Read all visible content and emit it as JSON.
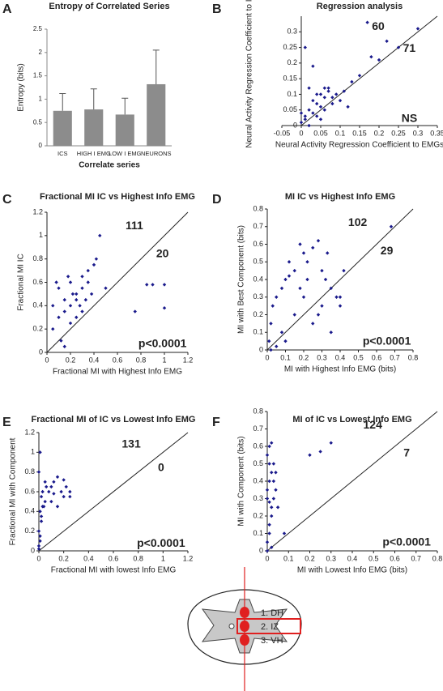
{
  "chart_data": [
    {
      "type": "bar",
      "label": "A",
      "title": "Entropy of Correlated Series",
      "xlabel": "Correlate series",
      "ylabel": "Entropy (bits)",
      "categories": [
        "ICS",
        "HIGH I EMG",
        "LOW I EMG",
        "NEURONS"
      ],
      "values": [
        0.75,
        0.78,
        0.67,
        1.32
      ],
      "errors": [
        0.37,
        0.44,
        0.35,
        0.73
      ],
      "color": "#8c8c8c",
      "ylim": [
        0,
        2.5
      ],
      "yticks": [
        0,
        0.5,
        1,
        1.5,
        2,
        2.5
      ]
    },
    {
      "type": "scatter",
      "label": "B",
      "title": "Regression analysis",
      "xlabel": "Neural Activity Regression Coefficient to EMGs",
      "ylabel": "Neural Activity  Regression Coefficient  to IC",
      "annotations": [
        "60",
        "71",
        "NS"
      ],
      "diagonal": true,
      "color": "#1a1a8c",
      "x": [
        0.01,
        0.02,
        0.03,
        0.04,
        0.05,
        0.06,
        0.07,
        0.08,
        0.02,
        0.03,
        0.05,
        0.06,
        0.08,
        0.1,
        0.12,
        0.04,
        0.01,
        0.0,
        0.03,
        0.07,
        0.09,
        0.11,
        0.15,
        0.18,
        0.2,
        0.25,
        0.17,
        0.22,
        0.3,
        0.02,
        0.05,
        0.06,
        0.13,
        0.04,
        0.0,
        0.01
      ],
      "values": [
        0.02,
        0.05,
        0.08,
        0.1,
        0.06,
        0.09,
        0.11,
        0.07,
        0.12,
        0.04,
        0.1,
        0.05,
        0.09,
        0.08,
        0.06,
        0.03,
        0.25,
        0.01,
        0.19,
        0.12,
        0.1,
        0.11,
        0.16,
        0.22,
        0.21,
        0.25,
        0.33,
        0.27,
        0.31,
        0.0,
        0.02,
        0.12,
        0.14,
        0.07,
        0.04,
        0.03
      ],
      "xlim": [
        -0.05,
        0.35
      ],
      "xticks": [
        -0.05,
        0,
        0.05,
        0.1,
        0.15,
        0.2,
        0.25,
        0.3,
        0.35
      ],
      "ylim": [
        0,
        0.35
      ],
      "yticks": [
        0,
        0.05,
        0.1,
        0.15,
        0.2,
        0.25,
        0.3
      ]
    },
    {
      "type": "scatter",
      "label": "C",
      "title": "Fractional MI IC vs Highest Info EMG",
      "xlabel": "Fractional MI with Highest Info EMG",
      "ylabel": "Fractional MI IC",
      "annotations": [
        "111",
        "20",
        "p<0.0001"
      ],
      "diagonal": true,
      "color": "#1a1a8c",
      "x": [
        0.05,
        0.1,
        0.15,
        0.2,
        0.25,
        0.3,
        0.35,
        0.4,
        0.45,
        0.1,
        0.15,
        0.2,
        0.25,
        0.3,
        0.35,
        0.05,
        0.12,
        0.22,
        0.28,
        0.33,
        0.42,
        0.18,
        0.08,
        0.38,
        0.5,
        0.75,
        0.9,
        1.0,
        1.0,
        0.85,
        0.15,
        0.25,
        0.3,
        0.2
      ],
      "values": [
        0.4,
        0.55,
        0.45,
        0.6,
        0.5,
        0.65,
        0.7,
        0.75,
        1.0,
        0.3,
        0.35,
        0.4,
        0.45,
        0.55,
        0.6,
        0.2,
        0.1,
        0.5,
        0.4,
        0.45,
        0.8,
        0.65,
        0.6,
        0.5,
        0.55,
        0.35,
        0.58,
        0.58,
        0.38,
        0.58,
        0.05,
        0.3,
        0.35,
        0.25
      ],
      "xlim": [
        0,
        1.2
      ],
      "xticks": [
        0,
        0.2,
        0.4,
        0.6,
        0.8,
        1,
        1.2
      ],
      "ylim": [
        0,
        1.2
      ],
      "yticks": [
        0,
        0.2,
        0.4,
        0.6,
        0.8,
        1,
        1.2
      ]
    },
    {
      "type": "scatter",
      "label": "D",
      "title": "MI IC vs Highest Info EMG",
      "xlabel": "MI with Highest Info EMG (bits)",
      "ylabel": "MI with Best Component (bits)",
      "annotations": [
        "102",
        "29",
        "p<0.0001"
      ],
      "diagonal": true,
      "color": "#1a1a8c",
      "x": [
        0.01,
        0.02,
        0.03,
        0.05,
        0.08,
        0.1,
        0.12,
        0.15,
        0.18,
        0.2,
        0.22,
        0.25,
        0.28,
        0.3,
        0.32,
        0.35,
        0.38,
        0.4,
        0.42,
        0.1,
        0.15,
        0.2,
        0.25,
        0.3,
        0.35,
        0.05,
        0.12,
        0.22,
        0.33,
        0.4,
        0.68,
        0.02,
        0.08,
        0.28,
        0.18
      ],
      "values": [
        0.05,
        0.15,
        0.25,
        0.3,
        0.35,
        0.4,
        0.5,
        0.45,
        0.6,
        0.55,
        0.5,
        0.58,
        0.62,
        0.45,
        0.4,
        0.35,
        0.3,
        0.25,
        0.45,
        0.05,
        0.2,
        0.3,
        0.15,
        0.25,
        0.1,
        0.02,
        0.42,
        0.4,
        0.55,
        0.3,
        0.7,
        0.0,
        0.1,
        0.2,
        0.35
      ],
      "xlim": [
        0,
        0.8
      ],
      "xticks": [
        0,
        0.1,
        0.2,
        0.3,
        0.4,
        0.5,
        0.6,
        0.7,
        0.8
      ],
      "ylim": [
        0,
        0.8
      ],
      "yticks": [
        0,
        0.1,
        0.2,
        0.3,
        0.4,
        0.5,
        0.6,
        0.7,
        0.8
      ]
    },
    {
      "type": "scatter",
      "label": "E",
      "title": "Fractional MI  of IC vs Lowest Info EMG",
      "xlabel": "Fractional MI with lowest Info EMG",
      "ylabel": "Fractional MI with Component",
      "annotations": [
        "131",
        "0",
        "p<0.0001"
      ],
      "diagonal": true,
      "color": "#1a1a8c",
      "x": [
        0,
        0.01,
        0.02,
        0.03,
        0.05,
        0.08,
        0.1,
        0.12,
        0.15,
        0.18,
        0.2,
        0.22,
        0.25,
        0,
        0.01,
        0.02,
        0.03,
        0.05,
        0.1,
        0.15,
        0.2,
        0,
        0.01,
        0.02,
        0.04,
        0.06,
        0,
        0.01,
        0.12,
        0.25
      ],
      "values": [
        0.02,
        0.1,
        0.3,
        0.45,
        0.5,
        0.6,
        0.65,
        0.7,
        0.75,
        0.6,
        0.55,
        0.65,
        0.55,
        0.2,
        0.4,
        0.55,
        0.6,
        0.7,
        0.5,
        0.45,
        0.72,
        0.8,
        1.0,
        0.35,
        0.45,
        0.65,
        0.05,
        0.15,
        0.58,
        0.6
      ],
      "xlim": [
        0,
        1.2
      ],
      "xticks": [
        0,
        0.2,
        0.4,
        0.6,
        0.8,
        1,
        1.2
      ],
      "ylim": [
        0,
        1.2
      ],
      "yticks": [
        0,
        0.2,
        0.4,
        0.6,
        0.8,
        1,
        1.2
      ]
    },
    {
      "type": "scatter",
      "label": "F",
      "title": "MI of IC vs Lowest Info EMG",
      "xlabel": "MI with Lowest Info EMG (bits)",
      "ylabel": "MI with Component (bits)",
      "annotations": [
        "124",
        "7",
        "p<0.0001"
      ],
      "diagonal": true,
      "color": "#1a1a8c",
      "x": [
        0,
        0.01,
        0.02,
        0.03,
        0,
        0.01,
        0.02,
        0.03,
        0,
        0.01,
        0.02,
        0.04,
        0.05,
        0.08,
        0.2,
        0.25,
        0.3,
        0,
        0.01,
        0.02,
        0.01,
        0.03,
        0,
        0.02,
        0.01,
        0.04
      ],
      "values": [
        0.05,
        0.1,
        0.2,
        0.3,
        0.35,
        0.4,
        0.45,
        0.5,
        0.55,
        0.6,
        0.62,
        0.35,
        0.25,
        0.1,
        0.55,
        0.57,
        0.62,
        0.0,
        0.15,
        0.25,
        0.5,
        0.4,
        0.3,
        0.02,
        0.28,
        0.45
      ],
      "xlim": [
        0,
        0.8
      ],
      "xticks": [
        0,
        0.1,
        0.2,
        0.3,
        0.4,
        0.5,
        0.6,
        0.7,
        0.8
      ],
      "ylim": [
        0,
        0.8
      ],
      "yticks": [
        0,
        0.1,
        0.2,
        0.3,
        0.4,
        0.5,
        0.6,
        0.7,
        0.8
      ]
    }
  ],
  "diagram": {
    "labels": [
      "1. DH",
      "2. IZ",
      "3. VH"
    ]
  }
}
